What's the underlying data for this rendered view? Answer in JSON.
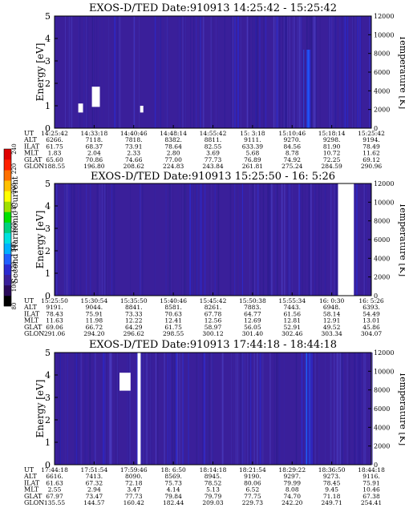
{
  "chart_data": [
    {
      "type": "heatmap",
      "title": "EXOS-D/TED   Date:910913   14:25:42 - 15:25:42",
      "ylabel": "Energy [eV]",
      "y2label": "Temperature [K]",
      "ylim": [
        0,
        5
      ],
      "y2lim": [
        0,
        12000
      ],
      "yticks": [
        0,
        1,
        2,
        3,
        4,
        5
      ],
      "y2ticks": [
        0,
        2000,
        4000,
        6000,
        8000,
        10000,
        12000
      ],
      "background": "#3a1f9a",
      "orbit_rows": [
        "UT",
        "ALT",
        "ILAT",
        "MLT",
        "GLAT",
        "GLON"
      ],
      "orbit_columns": [
        [
          "14:25:42",
          "6266.",
          "61.75",
          "1.83",
          "65.60",
          "188.55"
        ],
        [
          "14:33:18",
          "7118.",
          "68.37",
          "2.04",
          "70.86",
          "196.80"
        ],
        [
          "14:40:46",
          "7818.",
          "73.91",
          "2.33",
          "74.66",
          "208.62"
        ],
        [
          "14:48:14",
          "8382.",
          "78.64",
          "2.80",
          "77.00",
          "224.83"
        ],
        [
          "14:55:42",
          "8811.",
          "82.55",
          "3.69",
          "77.73",
          "243.84"
        ],
        [
          "15: 3:18",
          "9111.",
          "633.39",
          "5.68",
          "76.89",
          "261.81"
        ],
        [
          "15:10:46",
          "9270.",
          "84.56",
          "8.78",
          "74.92",
          "275.24"
        ],
        [
          "15:18:14",
          "9298.",
          "81.90",
          "10.72",
          "72.25",
          "284.59"
        ],
        [
          "15:25:42",
          "9194.",
          "78.49",
          "11.62",
          "69.12",
          "290.96"
        ]
      ],
      "features": [
        {
          "kind": "white-gap",
          "x_from": 0.118,
          "x_to": 0.143,
          "e_from": 0.95,
          "e_to": 1.85
        },
        {
          "kind": "white-gap",
          "x_from": 0.075,
          "x_to": 0.09,
          "e_from": 0.7,
          "e_to": 1.1
        },
        {
          "kind": "white-gap",
          "x_from": 0.27,
          "x_to": 0.28,
          "e_from": 0.7,
          "e_to": 1.0
        },
        {
          "kind": "bright-stripe",
          "x_from": 0.775,
          "x_to": 0.81,
          "e_from": 0,
          "e_to": 3.5
        }
      ]
    },
    {
      "type": "heatmap",
      "title": "EXOS-D/TED   Date:910913   15:25:50 - 16: 5:26",
      "ylabel": "Energy [eV]",
      "y2label": "Temperature [K]",
      "ylim": [
        0,
        5
      ],
      "y2lim": [
        0,
        12000
      ],
      "yticks": [
        0,
        1,
        2,
        3,
        4,
        5
      ],
      "y2ticks": [
        0,
        2000,
        4000,
        6000,
        8000,
        10000,
        12000
      ],
      "background": "#3a1f9a",
      "orbit_rows": [
        "UT",
        "ALT",
        "ILAT",
        "MLT",
        "GLAT",
        "GLON"
      ],
      "orbit_columns": [
        [
          "15:25:50",
          "9191.",
          "78.43",
          "11.63",
          "69.06",
          "291.06"
        ],
        [
          "15:30:54",
          "9044.",
          "75.91",
          "11.98",
          "66.72",
          "294.20"
        ],
        [
          "15:35:50",
          "8841.",
          "73.33",
          "12.22",
          "64.29",
          "296.62"
        ],
        [
          "15:40:46",
          "8581.",
          "70.63",
          "12.41",
          "61.75",
          "298.55"
        ],
        [
          "15:45:42",
          "8261.",
          "67.78",
          "12.56",
          "58.97",
          "300.12"
        ],
        [
          "15:50:38",
          "7883.",
          "64.77",
          "12.69",
          "56.05",
          "301.40"
        ],
        [
          "15:55:34",
          "7443.",
          "61.56",
          "12.81",
          "52.91",
          "302.46"
        ],
        [
          "16: 0:30",
          "6948.",
          "58.14",
          "12.91",
          "49.52",
          "303.34"
        ],
        [
          "16: 5:26",
          "6393.",
          "54.49",
          "13.01",
          "45.86",
          "304.07"
        ]
      ],
      "features": [
        {
          "kind": "white-gap",
          "x_from": 0.895,
          "x_to": 0.945,
          "e_from": 0,
          "e_to": 5
        }
      ]
    },
    {
      "type": "heatmap",
      "title": "EXOS-D/TED   Date:910913   17:44:18 - 18:44:18",
      "ylabel": "Energy [eV]",
      "y2label": "Temperature [K]",
      "ylim": [
        0,
        5
      ],
      "y2lim": [
        0,
        12000
      ],
      "yticks": [
        0,
        1,
        2,
        3,
        4,
        5
      ],
      "y2ticks": [
        0,
        2000,
        4000,
        6000,
        8000,
        10000,
        12000
      ],
      "background": "#3a1f9a",
      "orbit_rows": [
        "UT",
        "ALT",
        "ILAT",
        "MLT",
        "GLAT",
        "GLON"
      ],
      "orbit_columns": [
        [
          "17:44:18",
          "6616.",
          "61.63",
          "2.55",
          "67.97",
          "135.55"
        ],
        [
          "17:51:54",
          "7413.",
          "67.32",
          "2.94",
          "73.47",
          "144.57"
        ],
        [
          "17:59:46",
          "8090.",
          "72.18",
          "3.47",
          "77.73",
          "160.42"
        ],
        [
          "18: 6:50",
          "8569.",
          "75.73",
          "4.14",
          "79.84",
          "182.44"
        ],
        [
          "18:14:18",
          "8945.",
          "78.52",
          "5.13",
          "79.79",
          "209.03"
        ],
        [
          "18:21:54",
          "9190.",
          "80.06",
          "6.52",
          "77.75",
          "229.73"
        ],
        [
          "18:29:22",
          "9297.",
          "79.99",
          "8.08",
          "74.70",
          "242.20"
        ],
        [
          "18:36:50",
          "9273.",
          "78.45",
          "9.45",
          "71.18",
          "249.71"
        ],
        [
          "18:44:18",
          "9116.",
          "75.91",
          "10.46",
          "67.38",
          "254.41"
        ]
      ],
      "features": [
        {
          "kind": "white-gap",
          "x_from": 0.262,
          "x_to": 0.272,
          "e_from": 0,
          "e_to": 5
        },
        {
          "kind": "white-gap",
          "x_from": 0.205,
          "x_to": 0.24,
          "e_from": 3.3,
          "e_to": 4.1
        },
        {
          "kind": "bright-stripe",
          "x_from": 0.775,
          "x_to": 0.81,
          "e_from": 0,
          "e_to": 5
        }
      ]
    }
  ],
  "colorbar": {
    "label": "Second Harmonic Current",
    "ticks": [
      "80",
      "100",
      "120",
      "140",
      "160",
      "180",
      "200",
      "220",
      "240"
    ],
    "colors": [
      "#000000",
      "#2a0a5a",
      "#3a1f9a",
      "#2a2ad0",
      "#1f5fff",
      "#00b0ff",
      "#00e0e0",
      "#00d080",
      "#00e000",
      "#a0e000",
      "#ffff00",
      "#ffc000",
      "#ff7000",
      "#ff2000",
      "#e00000"
    ]
  }
}
